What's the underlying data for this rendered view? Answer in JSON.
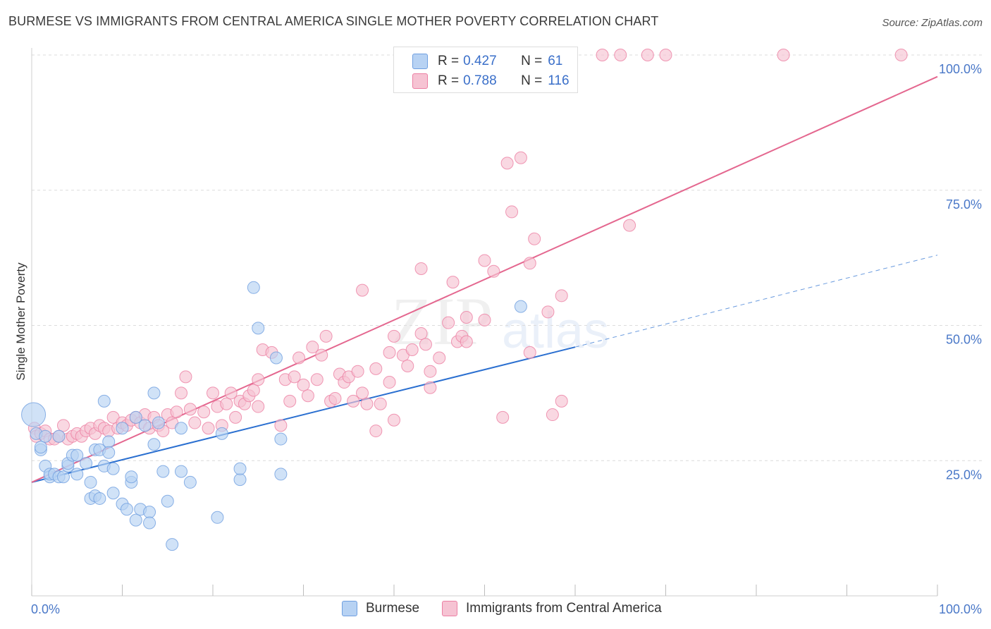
{
  "title": "BURMESE VS IMMIGRANTS FROM CENTRAL AMERICA SINGLE MOTHER POVERTY CORRELATION CHART",
  "source": "Source: ZipAtlas.com",
  "watermark": {
    "zip": "ZIP",
    "atlas": "atlas"
  },
  "legend": {
    "rows": [
      {
        "r_label": "R =",
        "r_value": "0.427",
        "n_label": "N =",
        "n_value": "61",
        "color": "#a9c8f0"
      },
      {
        "r_label": "R =",
        "r_value": "0.788",
        "n_label": "N =",
        "n_value": "116",
        "color": "#f6b8cb"
      }
    ]
  },
  "bottom_legend": {
    "burmese": "Burmese",
    "central_america": "Immigrants from Central America"
  },
  "chart_data": {
    "type": "scatter",
    "title": "BURMESE VS IMMIGRANTS FROM CENTRAL AMERICA SINGLE MOTHER POVERTY CORRELATION CHART",
    "xlabel": "",
    "ylabel": "Single Mother Poverty",
    "xlim": [
      0,
      100
    ],
    "ylim": [
      0,
      100
    ],
    "x_tick_labels": [
      "0.0%",
      "100.0%"
    ],
    "y_tick_labels": [
      "25.0%",
      "50.0%",
      "75.0%",
      "100.0%"
    ],
    "y_ticks": [
      25,
      50,
      75,
      100
    ],
    "grid": true,
    "legend_position": "top-center",
    "series": [
      {
        "name": "Burmese",
        "color": "#6f9fe0",
        "fill": "#b7d2f3",
        "trend": {
          "x": [
            0,
            60
          ],
          "y": [
            21,
            46
          ],
          "dashed_to": [
            100,
            63
          ],
          "color": "#2a6fd0"
        },
        "points": [
          [
            0.2,
            33.5
          ],
          [
            0.5,
            30
          ],
          [
            1,
            27
          ],
          [
            1,
            27.5
          ],
          [
            1.5,
            29.5
          ],
          [
            1.5,
            24
          ],
          [
            2,
            22
          ],
          [
            2,
            22.5
          ],
          [
            2.5,
            22.5
          ],
          [
            3,
            22
          ],
          [
            3,
            29.5
          ],
          [
            3.5,
            22
          ],
          [
            4,
            24
          ],
          [
            4,
            24.5
          ],
          [
            4.5,
            26
          ],
          [
            5,
            26
          ],
          [
            5,
            22.5
          ],
          [
            6,
            24.5
          ],
          [
            6.5,
            21
          ],
          [
            6.5,
            18
          ],
          [
            7,
            27
          ],
          [
            7,
            18.5
          ],
          [
            7.5,
            27
          ],
          [
            7.5,
            18
          ],
          [
            8,
            36
          ],
          [
            8,
            24
          ],
          [
            8.5,
            28.5
          ],
          [
            8.5,
            26.5
          ],
          [
            9,
            19
          ],
          [
            9,
            23.5
          ],
          [
            10,
            31
          ],
          [
            10,
            17
          ],
          [
            10.5,
            16
          ],
          [
            11,
            21
          ],
          [
            11,
            22
          ],
          [
            11.5,
            14
          ],
          [
            11.5,
            33
          ],
          [
            12,
            16
          ],
          [
            12.5,
            31.5
          ],
          [
            13,
            15.5
          ],
          [
            13,
            13.5
          ],
          [
            13.5,
            28
          ],
          [
            13.5,
            37.5
          ],
          [
            14,
            32
          ],
          [
            14.5,
            23
          ],
          [
            15,
            17.5
          ],
          [
            15.5,
            9.5
          ],
          [
            16.5,
            31
          ],
          [
            16.5,
            23
          ],
          [
            17.5,
            21
          ],
          [
            20.5,
            14.5
          ],
          [
            21,
            30
          ],
          [
            23,
            21.5
          ],
          [
            23,
            23.5
          ],
          [
            24.5,
            57
          ],
          [
            25,
            49.5
          ],
          [
            27,
            44
          ],
          [
            27.5,
            29
          ],
          [
            27.5,
            22.5
          ],
          [
            54,
            53.5
          ]
        ]
      },
      {
        "name": "Immigrants from Central America",
        "color": "#ec7fa3",
        "fill": "#f6c3d3",
        "trend": {
          "x": [
            0,
            100
          ],
          "y": [
            21,
            96
          ],
          "color": "#e4678f"
        },
        "points": [
          [
            0.3,
            31
          ],
          [
            0.5,
            29.5
          ],
          [
            1,
            30
          ],
          [
            1.5,
            30.5
          ],
          [
            2,
            29
          ],
          [
            2.5,
            29
          ],
          [
            3,
            29.5
          ],
          [
            3.5,
            31.5
          ],
          [
            4,
            29
          ],
          [
            4.5,
            29.5
          ],
          [
            5,
            30
          ],
          [
            5.5,
            29.5
          ],
          [
            6,
            30.5
          ],
          [
            6.5,
            31
          ],
          [
            7,
            30
          ],
          [
            7.5,
            31.5
          ],
          [
            8,
            31
          ],
          [
            8.5,
            30.5
          ],
          [
            9,
            33
          ],
          [
            9.5,
            31
          ],
          [
            10,
            32
          ],
          [
            10.5,
            31.5
          ],
          [
            11,
            32.5
          ],
          [
            11.5,
            33
          ],
          [
            12,
            32
          ],
          [
            12.5,
            33.5
          ],
          [
            13,
            31
          ],
          [
            13.5,
            33
          ],
          [
            14,
            31.5
          ],
          [
            14.5,
            30.5
          ],
          [
            15,
            33.5
          ],
          [
            15.5,
            32
          ],
          [
            16,
            34
          ],
          [
            16.5,
            37.5
          ],
          [
            17,
            40.5
          ],
          [
            17.5,
            34.5
          ],
          [
            18,
            32
          ],
          [
            19,
            34
          ],
          [
            19.5,
            31
          ],
          [
            20,
            37.5
          ],
          [
            20.5,
            35
          ],
          [
            21,
            31.5
          ],
          [
            21.5,
            35.5
          ],
          [
            22,
            37.5
          ],
          [
            22.5,
            33
          ],
          [
            23,
            36
          ],
          [
            23.5,
            35.5
          ],
          [
            24,
            37
          ],
          [
            24.5,
            38
          ],
          [
            25,
            35
          ],
          [
            25,
            40
          ],
          [
            25.5,
            45.5
          ],
          [
            26.5,
            45
          ],
          [
            27.5,
            31.5
          ],
          [
            28,
            40
          ],
          [
            28.5,
            36
          ],
          [
            29,
            40.5
          ],
          [
            29.5,
            44
          ],
          [
            30,
            39
          ],
          [
            30.5,
            37
          ],
          [
            31,
            46
          ],
          [
            31.5,
            40
          ],
          [
            32,
            44.5
          ],
          [
            32.5,
            48
          ],
          [
            33,
            36
          ],
          [
            33.5,
            36.5
          ],
          [
            34,
            41
          ],
          [
            34.5,
            39.5
          ],
          [
            35,
            40.5
          ],
          [
            35.5,
            36
          ],
          [
            36,
            41.5
          ],
          [
            36.5,
            37.5
          ],
          [
            36.5,
            56.5
          ],
          [
            37,
            35.5
          ],
          [
            38,
            30.5
          ],
          [
            38,
            42
          ],
          [
            38.5,
            35.5
          ],
          [
            39.5,
            45
          ],
          [
            39.5,
            39.5
          ],
          [
            40,
            48
          ],
          [
            40,
            32.5
          ],
          [
            41,
            44.5
          ],
          [
            41.5,
            42.5
          ],
          [
            42,
            45.5
          ],
          [
            43,
            48.5
          ],
          [
            43.5,
            46.5
          ],
          [
            43,
            60.5
          ],
          [
            44,
            38.5
          ],
          [
            44,
            41.5
          ],
          [
            45,
            44
          ],
          [
            46,
            50.5
          ],
          [
            46.5,
            58
          ],
          [
            47,
            47
          ],
          [
            47.5,
            48
          ],
          [
            48,
            47
          ],
          [
            48,
            51.5
          ],
          [
            50,
            62
          ],
          [
            50,
            51
          ],
          [
            51,
            60
          ],
          [
            52,
            33
          ],
          [
            52.5,
            80
          ],
          [
            53,
            71
          ],
          [
            54,
            81
          ],
          [
            55,
            61.5
          ],
          [
            55,
            45
          ],
          [
            55.5,
            66
          ],
          [
            57,
            52.5
          ],
          [
            57.5,
            33.5
          ],
          [
            58.5,
            55.5
          ],
          [
            58.5,
            36
          ],
          [
            63,
            100
          ],
          [
            65,
            100
          ],
          [
            66,
            68.5
          ],
          [
            68,
            100
          ],
          [
            70,
            100
          ],
          [
            83,
            100
          ],
          [
            96,
            100
          ]
        ]
      }
    ]
  }
}
